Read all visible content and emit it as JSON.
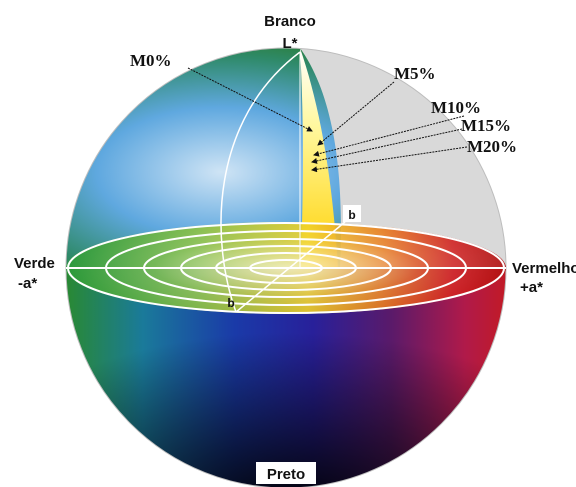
{
  "diagram": {
    "top_label": "Branco",
    "l_axis_label": "L*",
    "left_label": "Verde",
    "left_axis_label": "-a*",
    "right_label": "Vermelho",
    "right_axis_label": "+a*",
    "bottom_label": "Preto",
    "b_label_top": "b",
    "b_label_center": "b",
    "markers": [
      {
        "label": "M0%"
      },
      {
        "label": "M5%"
      },
      {
        "label": "M10%"
      },
      {
        "label": "M15%"
      },
      {
        "label": "M20%"
      }
    ]
  }
}
